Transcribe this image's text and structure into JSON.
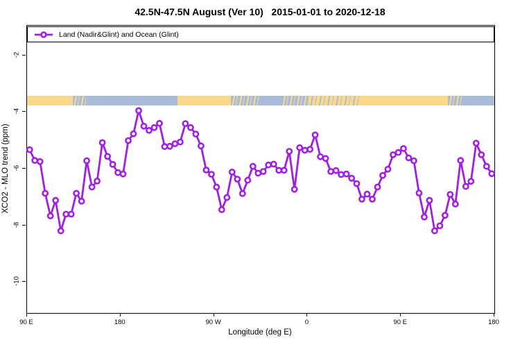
{
  "title": "42.5N-47.5N August (Ver 10)   2015-01-01 to 2020-12-18",
  "legend": {
    "label": "Land (Nadir&Glint) and Ocean (Glint)",
    "marker": "open-circle-on-line"
  },
  "colors": {
    "series_purple": "#A01FE0",
    "band_land": "#FAD98C",
    "band_ocean": "#A9BCD8",
    "axis_black": "#000000",
    "background": "#FFFFFF"
  },
  "chart_data": {
    "type": "line",
    "title": "42.5N-47.5N August (Ver 10)   2015-01-01 to 2020-12-18",
    "xlabel": "Longitude (deg E)",
    "ylabel": "XCO2 - MLO trend (ppm)",
    "xlim": [
      90,
      540
    ],
    "ylim": [
      -11.1,
      -0.95
    ],
    "grid": false,
    "legend_position": "top-full-width",
    "x_ticks": [
      {
        "lon": 90,
        "label": "90 E"
      },
      {
        "lon": 180,
        "label": "180"
      },
      {
        "lon": 270,
        "label": "90 W"
      },
      {
        "lon": 360,
        "label": "0"
      },
      {
        "lon": 450,
        "label": "90 E"
      },
      {
        "lon": 540,
        "label": "180"
      }
    ],
    "y_ticks": [
      {
        "value": -2,
        "label": "-2"
      },
      {
        "value": -4,
        "label": "-4"
      },
      {
        "value": -6,
        "label": "-6"
      },
      {
        "value": -8,
        "label": "-8"
      },
      {
        "value": -10,
        "label": "-10"
      }
    ],
    "series": [
      {
        "name": "Land (Nadir&Glint) and Ocean (Glint)",
        "marker": "open-circle",
        "x": [
          92.5,
          97.5,
          102.5,
          107.5,
          112.5,
          117.5,
          122.5,
          127.5,
          132.5,
          137.5,
          142.5,
          147.5,
          152.5,
          157.5,
          162.5,
          167.5,
          172.5,
          177.5,
          182.5,
          187.5,
          192.5,
          197.5,
          202.5,
          207.5,
          212.5,
          217.5,
          222.5,
          227.5,
          232.5,
          237.5,
          242.5,
          247.5,
          252.5,
          257.5,
          262.5,
          267.5,
          272.5,
          277.5,
          282.5,
          287.5,
          292.5,
          297.5,
          302.5,
          307.5,
          312.5,
          317.5,
          322.5,
          327.5,
          332.5,
          337.5,
          342.5,
          347.5,
          352.5,
          357.5,
          362.5,
          367.5,
          372.5,
          377.5,
          382.5,
          387.5,
          392.5,
          397.5,
          402.5,
          407.5,
          412.5,
          417.5,
          422.5,
          427.5,
          432.5,
          437.5,
          442.5,
          447.5,
          452.5,
          457.5,
          462.5,
          467.5,
          472.5,
          477.5,
          482.5,
          487.5,
          492.5,
          497.5,
          502.5,
          507.5,
          512.5,
          517.5,
          522.5,
          527.5,
          532.5,
          537.5
        ],
        "y": [
          -5.33,
          -5.71,
          -5.75,
          -6.87,
          -7.67,
          -7.12,
          -8.2,
          -7.61,
          -7.61,
          -6.87,
          -7.15,
          -5.72,
          -6.65,
          -6.44,
          -5.08,
          -5.57,
          -5.85,
          -6.14,
          -6.19,
          -5.01,
          -4.77,
          -3.95,
          -4.5,
          -4.65,
          -4.55,
          -4.4,
          -5.22,
          -5.21,
          -5.12,
          -5.06,
          -4.41,
          -4.55,
          -4.78,
          -5.2,
          -6.05,
          -6.2,
          -6.65,
          -7.45,
          -7.02,
          -6.12,
          -6.37,
          -6.88,
          -6.41,
          -5.92,
          -6.16,
          -6.1,
          -5.87,
          -5.84,
          -6.06,
          -6.06,
          -5.39,
          -6.73,
          -5.26,
          -5.35,
          -5.32,
          -4.81,
          -5.58,
          -5.64,
          -6.1,
          -6.07,
          -6.21,
          -6.19,
          -6.34,
          -6.53,
          -7.08,
          -6.9,
          -7.08,
          -6.65,
          -6.24,
          -6.02,
          -5.51,
          -5.43,
          -5.29,
          -5.62,
          -5.72,
          -6.86,
          -7.71,
          -7.12,
          -8.2,
          -8.02,
          -7.65,
          -6.91,
          -7.25,
          -5.71,
          -6.63,
          -6.45,
          -5.1,
          -5.51,
          -5.92,
          -6.18
        ]
      }
    ],
    "map_band": {
      "description": "land/ocean strip at 42.5N-47.5N",
      "y_top": -3.42,
      "y_bottom": -3.76,
      "segments": [
        {
          "from": 90,
          "to": 134,
          "type": "land"
        },
        {
          "from": 134,
          "to": 147,
          "type": "mixed"
        },
        {
          "from": 147,
          "to": 235,
          "type": "ocean"
        },
        {
          "from": 235,
          "to": 286,
          "type": "land"
        },
        {
          "from": 286,
          "to": 313,
          "type": "mixed"
        },
        {
          "from": 313,
          "to": 335,
          "type": "ocean"
        },
        {
          "from": 335,
          "to": 361,
          "type": "mixed"
        },
        {
          "from": 361,
          "to": 411,
          "type": "mixed_land"
        },
        {
          "from": 411,
          "to": 495,
          "type": "land"
        },
        {
          "from": 495,
          "to": 509,
          "type": "mixed"
        },
        {
          "from": 509,
          "to": 540,
          "type": "ocean"
        }
      ]
    }
  }
}
